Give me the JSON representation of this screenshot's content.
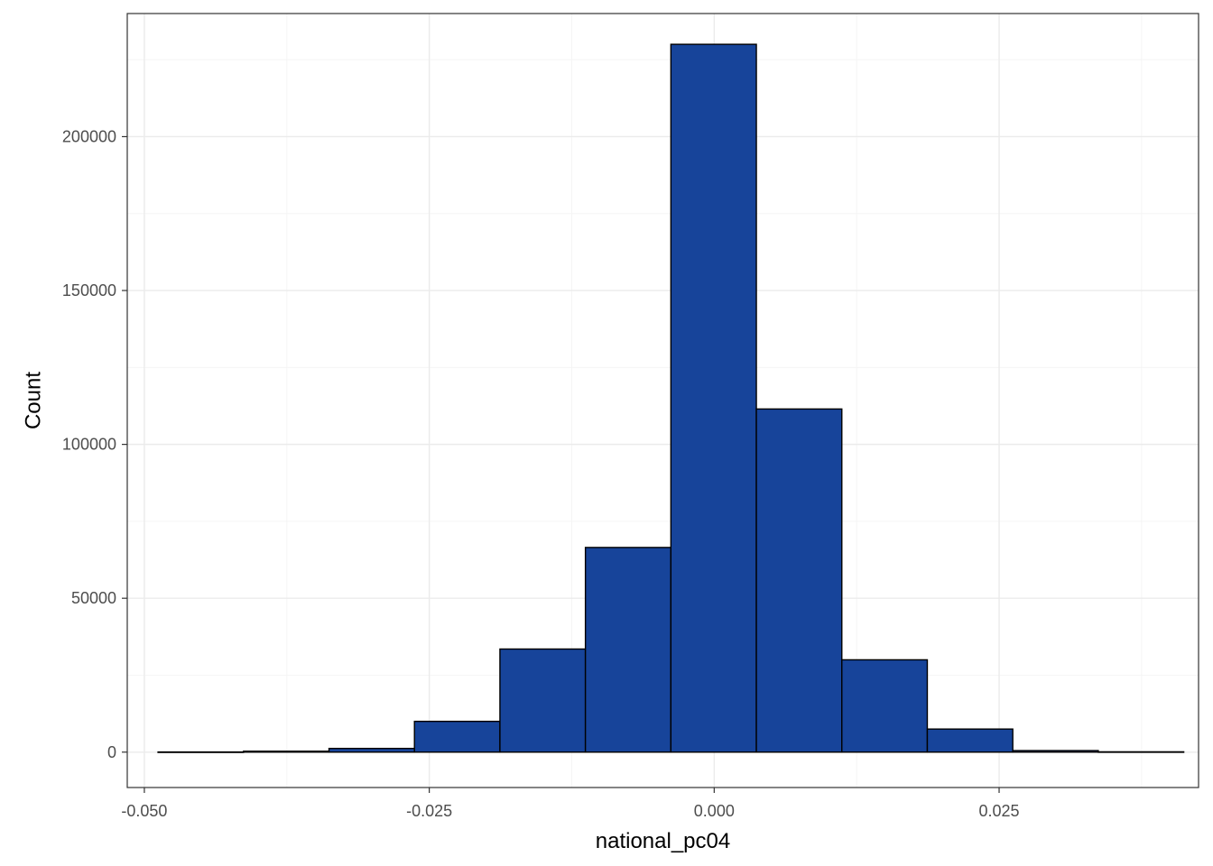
{
  "chart_data": {
    "type": "bar",
    "subtype": "histogram",
    "title": "",
    "xlabel": "national_pc04",
    "ylabel": "Count",
    "xlim": [
      -0.0515,
      0.0425
    ],
    "ylim": [
      -11500,
      240000
    ],
    "x_ticks": [
      -0.05,
      -0.025,
      0.0,
      0.025
    ],
    "x_tick_labels": [
      "-0.050",
      "-0.025",
      "0.000",
      "0.025"
    ],
    "y_ticks": [
      0,
      50000,
      100000,
      150000,
      200000
    ],
    "y_tick_labels": [
      "0",
      "50000",
      "100000",
      "150000",
      "200000"
    ],
    "bin_width": 0.0075,
    "bins": [
      {
        "x0": -0.0488,
        "x1": -0.0413,
        "count": 50
      },
      {
        "x0": -0.0413,
        "x1": -0.0338,
        "count": 300
      },
      {
        "x0": -0.0338,
        "x1": -0.0263,
        "count": 1200
      },
      {
        "x0": -0.0263,
        "x1": -0.0188,
        "count": 10000
      },
      {
        "x0": -0.0188,
        "x1": -0.0113,
        "count": 33500
      },
      {
        "x0": -0.0113,
        "x1": -0.0038,
        "count": 66500
      },
      {
        "x0": -0.0038,
        "x1": 0.0037,
        "count": 230000
      },
      {
        "x0": 0.0037,
        "x1": 0.0112,
        "count": 111500
      },
      {
        "x0": 0.0112,
        "x1": 0.0187,
        "count": 30000
      },
      {
        "x0": 0.0187,
        "x1": 0.0262,
        "count": 7500
      },
      {
        "x0": 0.0262,
        "x1": 0.0337,
        "count": 500
      },
      {
        "x0": 0.0337,
        "x1": 0.0412,
        "count": 100
      }
    ],
    "grid": true,
    "legend": "none",
    "colors": {
      "bar_fill": "#17449a",
      "bar_stroke": "#000000",
      "panel_border": "#333333",
      "grid_major": "#ebebeb",
      "grid_minor": "#f5f5f5",
      "tick_text": "#4d4d4d",
      "axis_title": "#000000"
    }
  }
}
